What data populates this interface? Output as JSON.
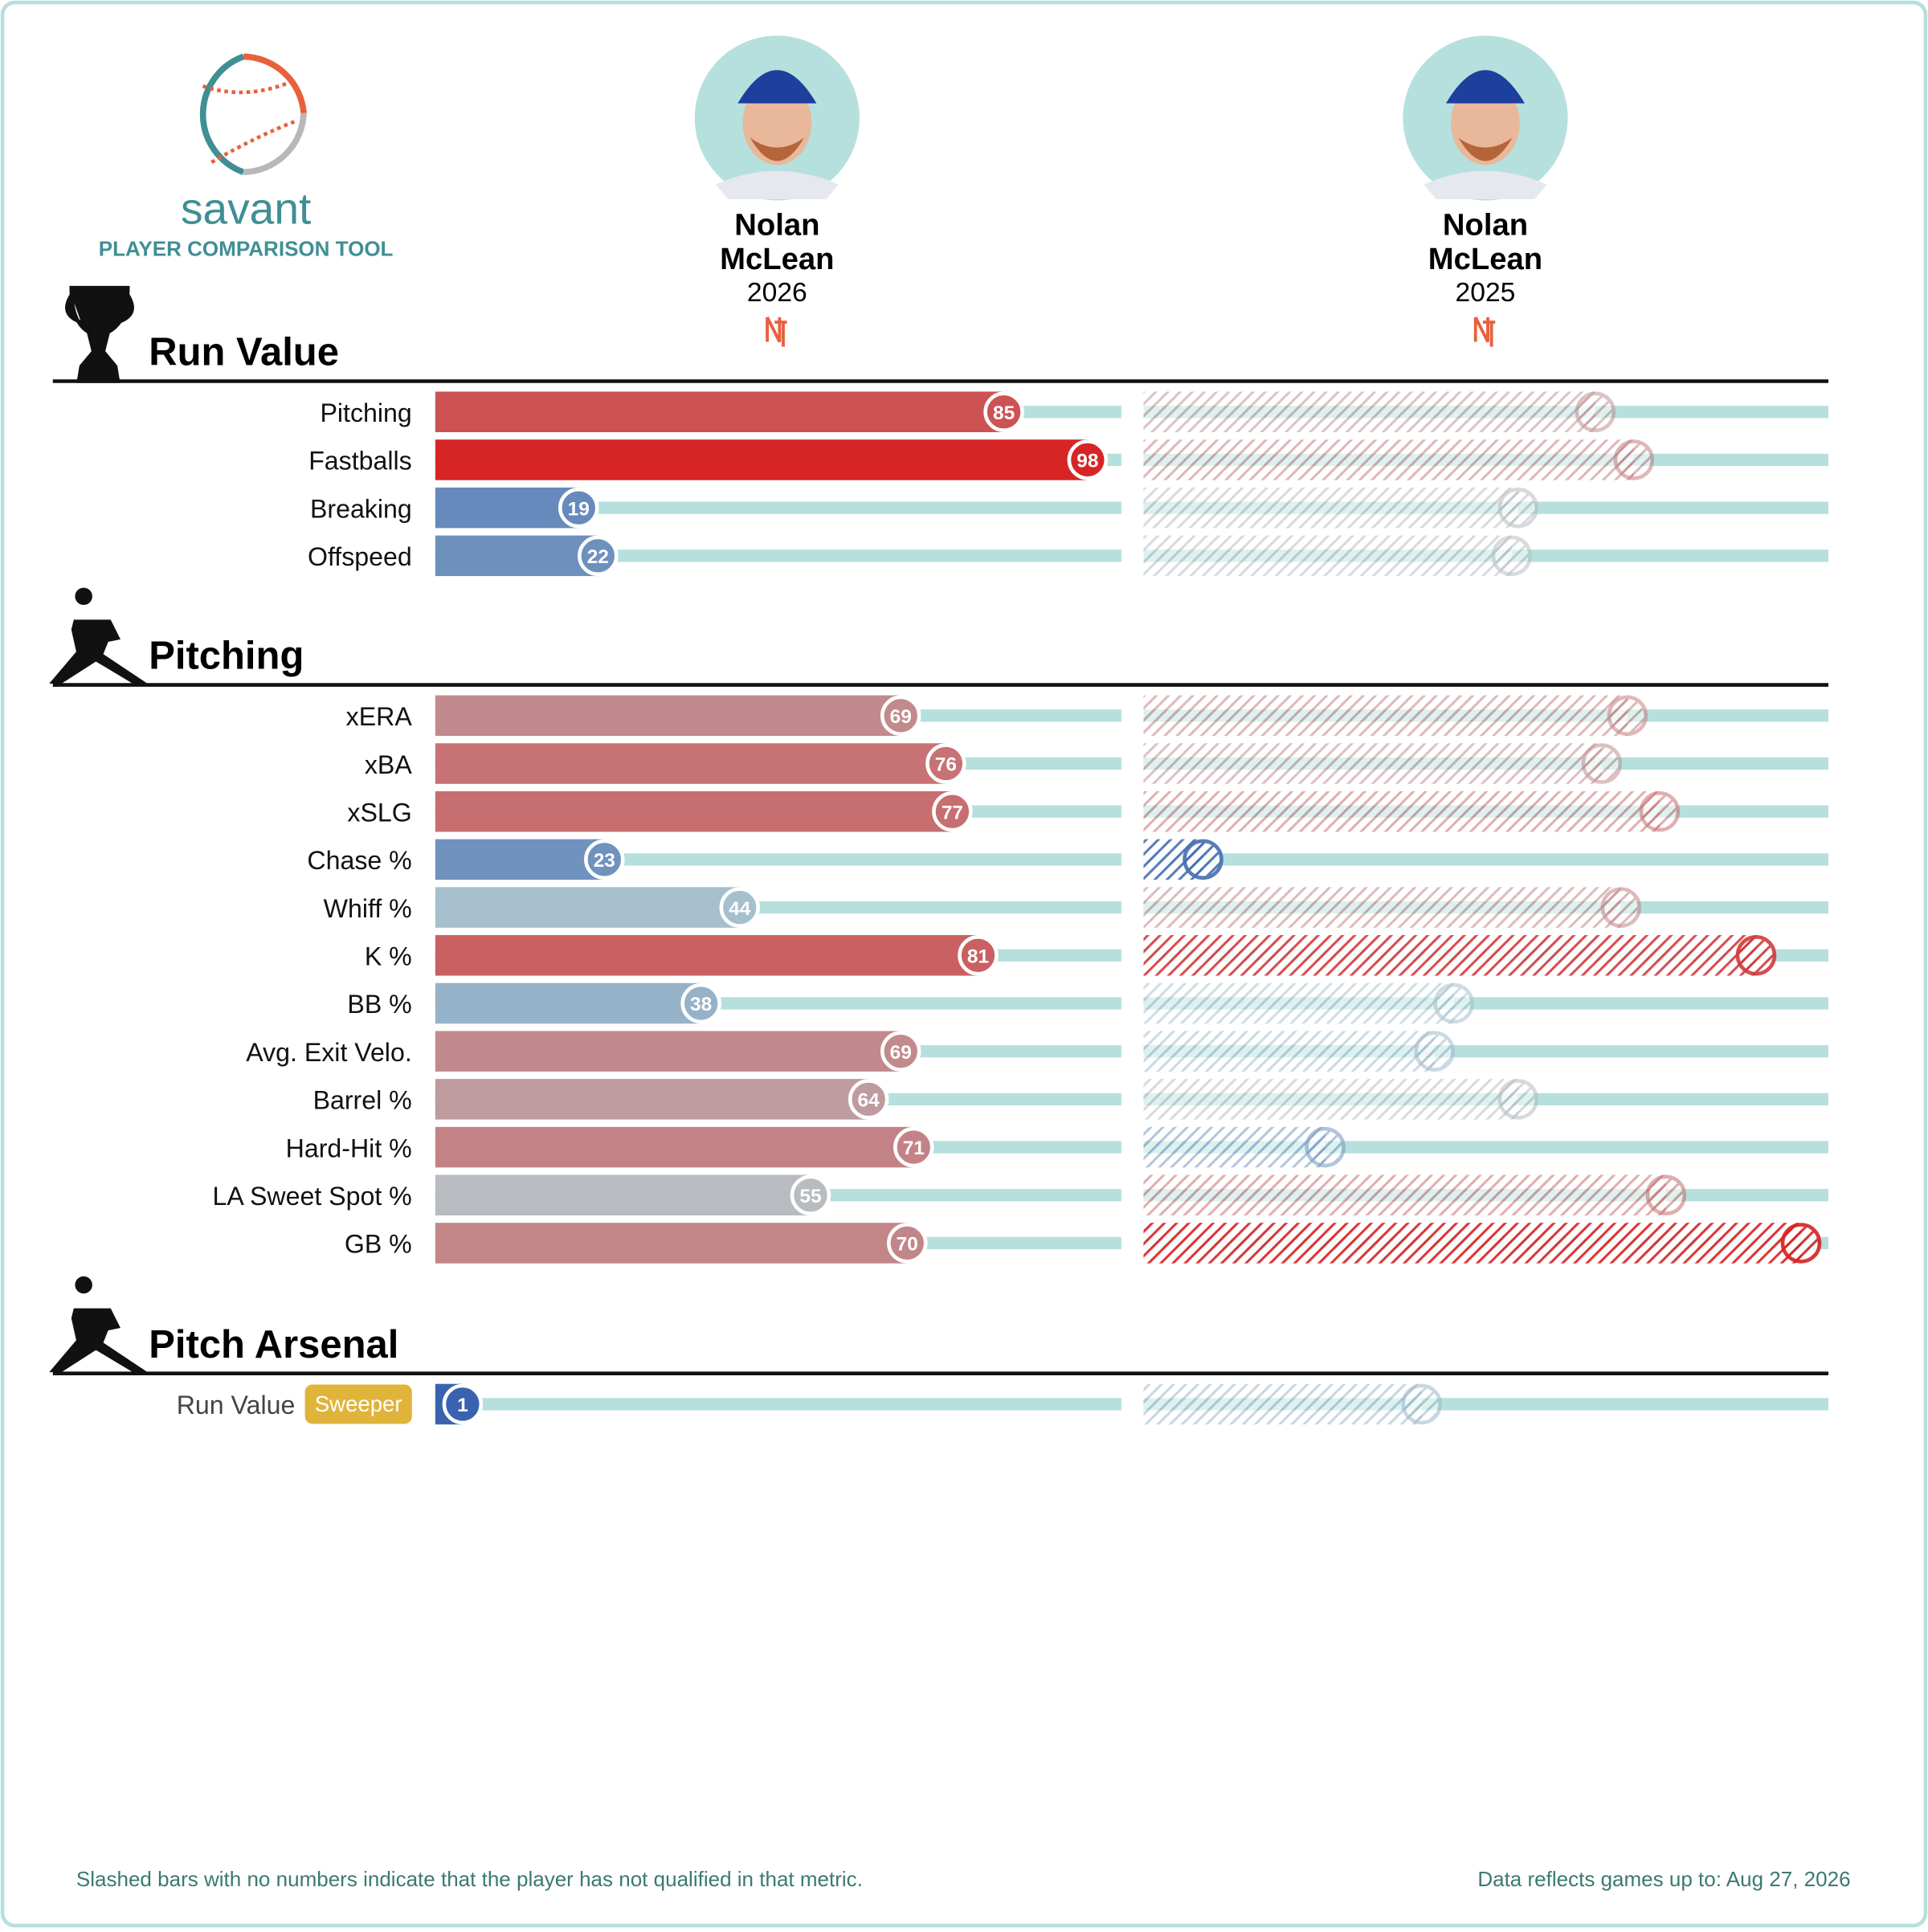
{
  "header": {
    "brand": "savant",
    "subtitle": "PLAYER COMPARISON TOOL"
  },
  "players": [
    {
      "first": "Nolan",
      "last": "McLean",
      "season": "2026"
    },
    {
      "first": "Nolan",
      "last": "McLean",
      "season": "2025"
    }
  ],
  "sections": [
    {
      "title": "Run Value",
      "rows": [
        {
          "label": "Pitching",
          "values": [
            85,
            67
          ]
        },
        {
          "label": "Fastballs",
          "values": [
            98,
            73
          ]
        },
        {
          "label": "Breaking",
          "values": [
            19,
            55
          ]
        },
        {
          "label": "Offspeed",
          "values": [
            22,
            54
          ]
        }
      ]
    },
    {
      "title": "Pitching",
      "rows": [
        {
          "label": "xERA",
          "values": [
            69,
            72
          ]
        },
        {
          "label": "xBA",
          "values": [
            76,
            68
          ]
        },
        {
          "label": "xSLG",
          "values": [
            77,
            77
          ]
        },
        {
          "label": "Chase %",
          "values": [
            23,
            6
          ]
        },
        {
          "label": "Whiff %",
          "values": [
            44,
            71
          ]
        },
        {
          "label": "K %",
          "values": [
            81,
            92
          ]
        },
        {
          "label": "BB %",
          "values": [
            38,
            45
          ]
        },
        {
          "label": "Avg. Exit Velo.",
          "values": [
            69,
            42
          ]
        },
        {
          "label": "Barrel %",
          "values": [
            64,
            55
          ]
        },
        {
          "label": "Hard-Hit %",
          "values": [
            71,
            25
          ]
        },
        {
          "label": "LA Sweet Spot %",
          "values": [
            55,
            78
          ]
        },
        {
          "label": "GB %",
          "values": [
            70,
            99
          ]
        }
      ]
    },
    {
      "title": "Pitch Arsenal",
      "rows": [
        {
          "label": "Run Value",
          "tag": "Sweeper",
          "values": [
            1,
            40
          ]
        }
      ]
    }
  ],
  "footer": {
    "note": "Slashed bars with no numbers indicate that the player has not qualified in that metric.",
    "updated": "Data reflects games up to: Aug 27, 2026"
  }
}
